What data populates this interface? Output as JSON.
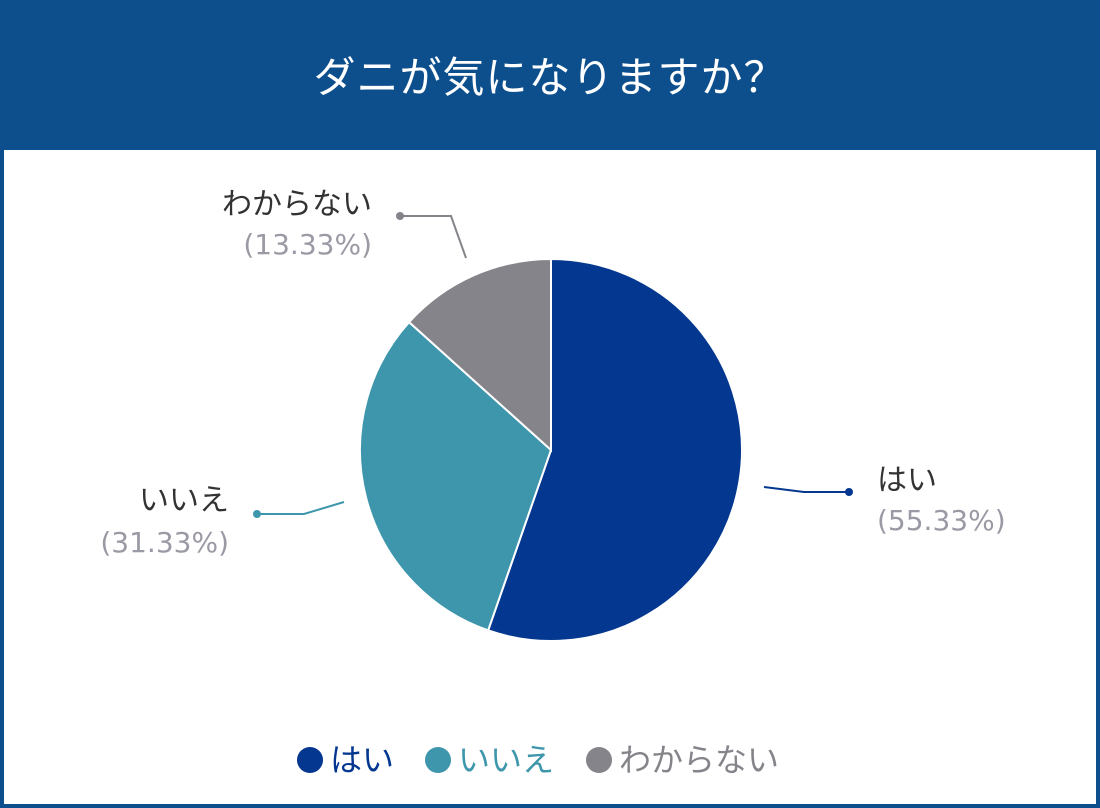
{
  "header": {
    "title": "ダニが気になりますか？"
  },
  "colors": {
    "header_bg": "#0d4f8c",
    "panel_bg": "#ffffff"
  },
  "chart_data": {
    "type": "pie",
    "title": "ダニが気になりますか？",
    "legend_position": "bottom",
    "slices": [
      {
        "label": "はい",
        "value": 55.33,
        "percent_label": "(55.33%)",
        "color": "#04378f"
      },
      {
        "label": "いいえ",
        "value": 31.33,
        "percent_label": "(31.33%)",
        "color": "#3d96ac"
      },
      {
        "label": "わからない",
        "value": 13.33,
        "percent_label": "(13.33%)",
        "color": "#85848a"
      }
    ]
  }
}
